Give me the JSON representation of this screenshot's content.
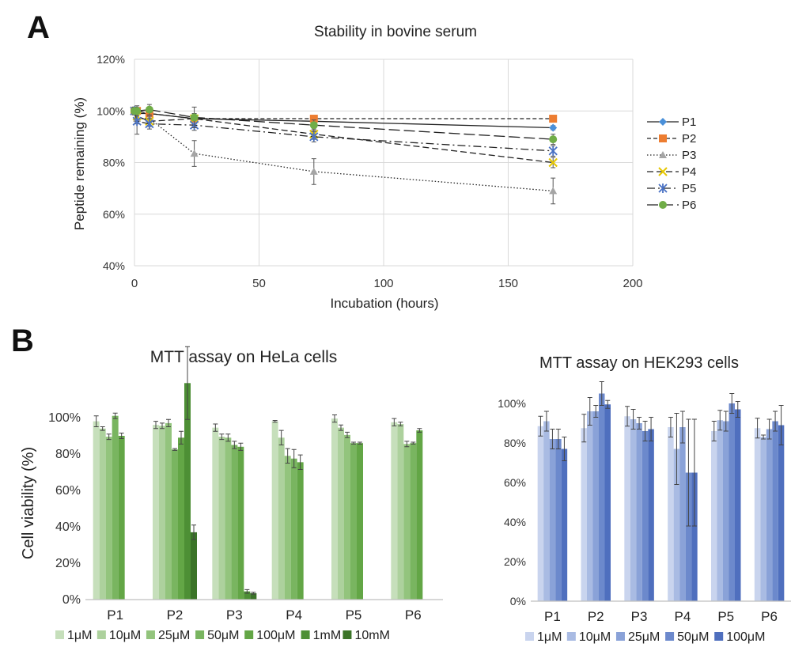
{
  "panel_labels": [
    "A",
    "B"
  ],
  "chart_data": [
    {
      "type": "line",
      "title": "Stability in bovine serum",
      "xlabel": "Incubation (hours)",
      "ylabel": "Peptide remaining (%)",
      "xlim": [
        0,
        200
      ],
      "ylim": [
        40,
        120
      ],
      "xticks": [
        "0",
        "50",
        "100",
        "150",
        "200"
      ],
      "yticks": [
        "40%",
        "60%",
        "80%",
        "100%",
        "120%"
      ],
      "grid": true,
      "legend_position": "right",
      "x": [
        0,
        1,
        6,
        24,
        72,
        168
      ],
      "series": [
        {
          "name": "P1",
          "color": "#4a90d9",
          "marker": "diamond",
          "dash": "solid",
          "values": [
            100,
            99,
            99,
            97,
            96,
            93.5
          ],
          "err": [
            1,
            1,
            1,
            1,
            1,
            0.8
          ]
        },
        {
          "name": "P2",
          "color": "#ed7d31",
          "marker": "square",
          "dash": "short-dash",
          "values": [
            100,
            100,
            99,
            97,
            97,
            97
          ],
          "err": [
            1,
            1,
            1,
            1,
            0.8,
            0.8
          ]
        },
        {
          "name": "P3",
          "color": "#a5a5a5",
          "marker": "triangle",
          "dash": "dot",
          "values": [
            100,
            97,
            97,
            83.5,
            76.5,
            69
          ],
          "err": [
            1.5,
            2,
            3,
            5,
            5,
            5
          ]
        },
        {
          "name": "P4",
          "color": "#e6c700",
          "marker": "x",
          "dash": "dash",
          "values": [
            100,
            98,
            96,
            97,
            91,
            80
          ],
          "err": [
            1,
            2,
            2,
            2,
            2,
            2
          ]
        },
        {
          "name": "P5",
          "color": "#4a72c4",
          "marker": "star",
          "dash": "dash-dot",
          "values": [
            100,
            96,
            95,
            94.5,
            90,
            84.5
          ],
          "err": [
            1.5,
            5,
            2,
            2,
            2,
            2
          ]
        },
        {
          "name": "P6",
          "color": "#70ad47",
          "marker": "circle",
          "dash": "long-dash",
          "values": [
            100,
            100,
            100.5,
            97.5,
            94.5,
            89
          ],
          "err": [
            1,
            2,
            2,
            4,
            2,
            2
          ]
        }
      ]
    },
    {
      "type": "bar",
      "title": "MTT assay on HeLa cells",
      "ylabel": "Cell viability (%)",
      "ylim": [
        0,
        120
      ],
      "yticks": [
        "0%",
        "20%",
        "40%",
        "60%",
        "80%",
        "100%"
      ],
      "grid": false,
      "legend_position": "bottom",
      "categories": [
        "P1",
        "P2",
        "P3",
        "P4",
        "P5",
        "P6"
      ],
      "series": [
        {
          "name": "1μM",
          "color": "#c6dfbb",
          "values": [
            98,
            96,
            94.5,
            98,
            99.5,
            97.5
          ],
          "err": [
            3,
            2,
            2,
            0.5,
            2,
            2
          ]
        },
        {
          "name": "10μM",
          "color": "#add19d",
          "values": [
            94,
            95.5,
            89.5,
            89,
            94.5,
            96.5
          ],
          "err": [
            1,
            1.5,
            1.5,
            4,
            1.5,
            1
          ]
        },
        {
          "name": "25μM",
          "color": "#93c47d",
          "values": [
            89.5,
            97,
            89,
            79,
            90.5,
            85.5
          ],
          "err": [
            1.5,
            2,
            2,
            4,
            1.5,
            1.5
          ]
        },
        {
          "name": "50μM",
          "color": "#79b560",
          "values": [
            101,
            82.5,
            85,
            77.5,
            86,
            86
          ],
          "err": [
            1.5,
            0.5,
            2,
            5,
            0.5,
            0.5
          ]
        },
        {
          "name": "100μM",
          "color": "#63a646",
          "values": [
            90,
            89,
            84,
            75.5,
            86,
            93
          ],
          "err": [
            1.5,
            3.5,
            2,
            4,
            0.5,
            1
          ]
        },
        {
          "name": "1mM",
          "color": "#4d8f35",
          "values": [
            null,
            119,
            4.5,
            null,
            null,
            null
          ],
          "err": [
            0,
            20,
            1,
            0,
            0,
            0
          ]
        },
        {
          "name": "10mM",
          "color": "#3b7428",
          "values": [
            null,
            37,
            3.5,
            null,
            null,
            null
          ],
          "err": [
            0,
            4,
            0.5,
            0,
            0,
            0
          ]
        }
      ]
    },
    {
      "type": "bar",
      "title": "MTT assay on HEK293 cells",
      "ylim": [
        0,
        110
      ],
      "yticks": [
        "0%",
        "20%",
        "40%",
        "60%",
        "80%",
        "100%"
      ],
      "grid": false,
      "legend_position": "bottom",
      "categories": [
        "P1",
        "P2",
        "P3",
        "P4",
        "P5",
        "P6"
      ],
      "series": [
        {
          "name": "1μM",
          "color": "#c9d4ee",
          "values": [
            88.5,
            87.5,
            93.5,
            88,
            86,
            87.5
          ],
          "err": [
            5,
            7,
            5,
            5,
            5,
            5
          ]
        },
        {
          "name": "10μM",
          "color": "#a9bbe3",
          "values": [
            91,
            96,
            92,
            77,
            91.5,
            83
          ],
          "err": [
            5,
            7,
            5,
            18,
            5,
            1
          ]
        },
        {
          "name": "25μM",
          "color": "#8aa2d8",
          "values": [
            82,
            96,
            90,
            88,
            91,
            87
          ],
          "err": [
            5,
            3,
            3,
            8,
            5,
            5
          ]
        },
        {
          "name": "50μM",
          "color": "#6c89cc",
          "values": [
            82,
            105,
            86,
            65,
            100,
            91
          ],
          "err": [
            5,
            6,
            5,
            27,
            5,
            5
          ]
        },
        {
          "name": "100μM",
          "color": "#4f6fbe",
          "values": [
            77,
            99.5,
            87,
            65,
            97,
            89
          ],
          "err": [
            6,
            2,
            6,
            27,
            4,
            10
          ]
        }
      ]
    }
  ]
}
